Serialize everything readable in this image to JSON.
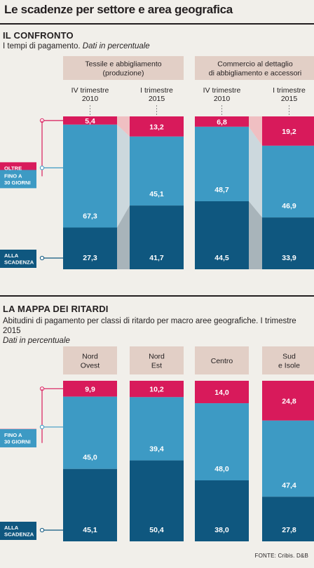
{
  "title": "Le scadenze per settore e area geografica",
  "footer": "FONTE: Cribis. D&B",
  "colors": {
    "oltre": "#d81a5b",
    "fino": "#3d9ac4",
    "alla": "#0f577f",
    "header_box": "#e2cfc6",
    "connector_light": "#c5d3da",
    "connector_pink": "#f0b6bb",
    "connector_dark": "#9ba9b2"
  },
  "legend": {
    "oltre": [
      "OLTRE",
      "30 GIORNI"
    ],
    "fino": [
      "FINO A",
      "30 GIORNI"
    ],
    "alla": [
      "ALLA",
      "SCADENZA"
    ]
  },
  "chart_data": [
    {
      "type": "bar",
      "stacked": true,
      "title": "IL CONFRONTO",
      "subtitle": "I tempi di pagamento.",
      "subtitle_italic": "Dati in percentuale",
      "ylim": [
        0,
        100
      ],
      "groups": [
        {
          "label": [
            "Tessile e abbigliamento",
            "(produzione)"
          ],
          "categories": [
            [
              "IV trimestre",
              "2010"
            ],
            [
              "I trimestre",
              "2015"
            ]
          ]
        },
        {
          "label": [
            "Commercio al dettaglio",
            "di abbigliamento e accessori"
          ],
          "categories": [
            [
              "IV trimestre",
              "2010"
            ],
            [
              "I trimestre",
              "2015"
            ]
          ]
        }
      ],
      "bars": [
        {
          "oltre": 5.4,
          "fino": 67.3,
          "alla": 27.3,
          "labels": [
            "5,4",
            "67,3",
            "27,3"
          ]
        },
        {
          "oltre": 13.2,
          "fino": 45.1,
          "alla": 41.7,
          "labels": [
            "13,2",
            "45,1",
            "41,7"
          ]
        },
        {
          "oltre": 6.8,
          "fino": 48.7,
          "alla": 44.5,
          "labels": [
            "6,8",
            "48,7",
            "44,5"
          ]
        },
        {
          "oltre": 19.2,
          "fino": 46.9,
          "alla": 33.9,
          "labels": [
            "19,2",
            "46,9",
            "33,9"
          ]
        }
      ]
    },
    {
      "type": "bar",
      "stacked": true,
      "title": "LA MAPPA DEI RITARDI",
      "subtitle": "Abitudini di pagamento per classi di ritardo per macro aree geografiche. I trimestre 2015",
      "subtitle_italic": "Dati in percentuale",
      "ylim": [
        0,
        100
      ],
      "categories": [
        [
          "Nord",
          "Ovest"
        ],
        [
          "Nord",
          "Est"
        ],
        [
          "Centro"
        ],
        [
          "Sud",
          "e Isole"
        ]
      ],
      "bars": [
        {
          "oltre": 9.9,
          "fino": 45.0,
          "alla": 45.1,
          "labels": [
            "9,9",
            "45,0",
            "45,1"
          ]
        },
        {
          "oltre": 10.2,
          "fino": 39.4,
          "alla": 50.4,
          "labels": [
            "10,2",
            "39,4",
            "50,4"
          ]
        },
        {
          "oltre": 14.0,
          "fino": 48.0,
          "alla": 38.0,
          "labels": [
            "14,0",
            "48,0",
            "38,0"
          ]
        },
        {
          "oltre": 24.8,
          "fino": 47.4,
          "alla": 27.8,
          "labels": [
            "24,8",
            "47,4",
            "27,8"
          ]
        }
      ]
    }
  ]
}
